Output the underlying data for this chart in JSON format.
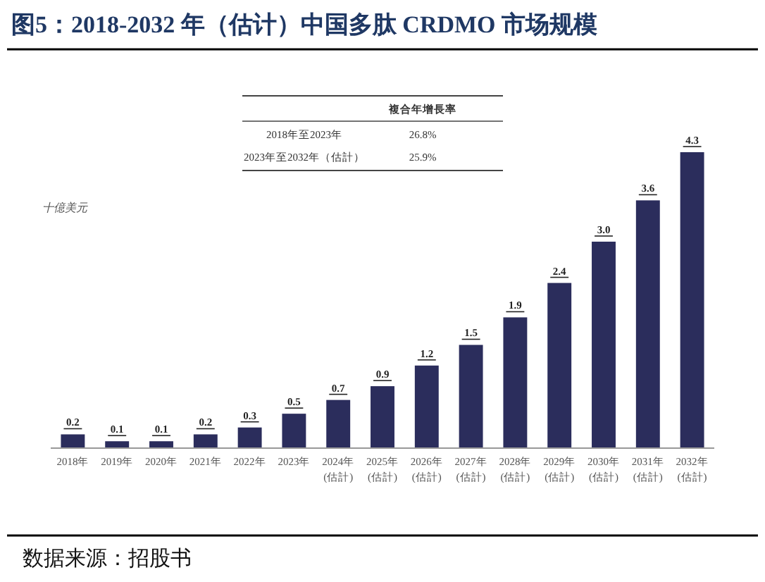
{
  "chart_data": {
    "type": "bar",
    "title": "图5：2018-2032 年（估计）中国多肽 CRDMO 市场规模",
    "ylabel": "十億美元",
    "categories": [
      "2018年",
      "2019年",
      "2020年",
      "2021年",
      "2022年",
      "2023年",
      "2024年\n(估計)",
      "2025年\n(估計)",
      "2026年\n(估計)",
      "2027年\n(估計)",
      "2028年\n(估計)",
      "2029年\n(估計)",
      "2030年\n(估計)",
      "2031年\n(估計)",
      "2032年\n(估計)"
    ],
    "values": [
      0.2,
      0.1,
      0.1,
      0.2,
      0.3,
      0.5,
      0.7,
      0.9,
      1.2,
      1.5,
      1.9,
      2.4,
      3.0,
      3.6,
      4.3
    ],
    "color": "#2b2d5c",
    "value_labels": [
      "0.2",
      "0.1",
      "0.1",
      "0.2",
      "0.3",
      "0.5",
      "0.7",
      "0.9",
      "1.2",
      "1.5",
      "1.9",
      "2.4",
      "3.0",
      "3.6",
      "4.3"
    ],
    "annotations": [
      "複合年增長率",
      "2018年至2023年",
      "26.8%",
      "2023年至2032年（估計）",
      "25.9%",
      "数据来源：招股书"
    ]
  }
}
